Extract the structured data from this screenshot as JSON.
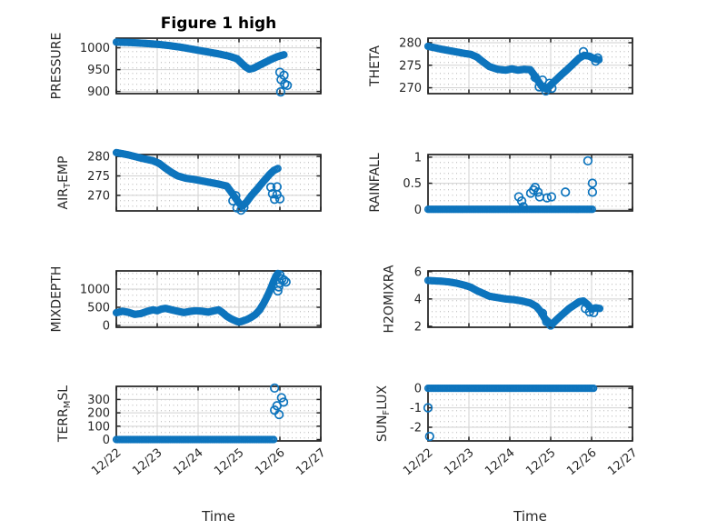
{
  "figure": {
    "title": "Figure 1 high",
    "xlabel": "Time",
    "xticklabels": [
      "12/22",
      "12/23",
      "12/24",
      "12/25",
      "12/26",
      "12/27"
    ],
    "marker_color": "#0d74bd",
    "axis_color": "#1f1f1f",
    "tick_label_color": "#262626",
    "major_grid_color": "#d2d2d2",
    "minor_grid_color": "#c6c6c6",
    "background": "#ffffff"
  },
  "chart_data": [
    {
      "id": "pressure",
      "type": "scatter",
      "grid_row": 0,
      "grid_col": 0,
      "ylabel_parts": [
        {
          "text": "PRESSURE",
          "sub": false
        }
      ],
      "yticks": [
        {
          "v": 900,
          "label": "900"
        },
        {
          "v": 950,
          "label": "950"
        },
        {
          "v": 1000,
          "label": "1000"
        }
      ],
      "ylim": [
        895,
        1022
      ],
      "x_range": [
        0,
        5
      ],
      "trend": [
        [
          0,
          1013
        ],
        [
          0.35,
          1012
        ],
        [
          0.7,
          1010
        ],
        [
          1.0,
          1008
        ],
        [
          1.3,
          1005
        ],
        [
          1.6,
          1001
        ],
        [
          1.9,
          996
        ],
        [
          2.2,
          991
        ],
        [
          2.5,
          986
        ],
        [
          2.75,
          981
        ],
        [
          2.95,
          975
        ],
        [
          3.05,
          966
        ],
        [
          3.15,
          957
        ],
        [
          3.25,
          951
        ],
        [
          3.35,
          953
        ],
        [
          3.5,
          960
        ],
        [
          3.65,
          967
        ],
        [
          3.8,
          974
        ],
        [
          3.95,
          980
        ],
        [
          4.1,
          984
        ]
      ],
      "outliers": [
        [
          4.0,
          944
        ],
        [
          4.1,
          937
        ],
        [
          4.03,
          927
        ],
        [
          4.12,
          917
        ],
        [
          4.18,
          914
        ],
        [
          4.02,
          899
        ]
      ]
    },
    {
      "id": "theta",
      "type": "scatter",
      "grid_row": 0,
      "grid_col": 1,
      "ylabel_parts": [
        {
          "text": "THETA",
          "sub": false
        }
      ],
      "yticks": [
        {
          "v": 270,
          "label": "270"
        },
        {
          "v": 275,
          "label": "275"
        },
        {
          "v": 280,
          "label": "280"
        }
      ],
      "ylim": [
        268.7,
        281.0
      ],
      "x_range": [
        0,
        5
      ],
      "trend": [
        [
          0,
          279.2
        ],
        [
          0.3,
          278.6
        ],
        [
          0.6,
          278.1
        ],
        [
          0.9,
          277.6
        ],
        [
          1.05,
          277.4
        ],
        [
          1.2,
          276.8
        ],
        [
          1.35,
          275.7
        ],
        [
          1.5,
          274.7
        ],
        [
          1.7,
          274.1
        ],
        [
          1.9,
          273.9
        ],
        [
          2.05,
          274.2
        ],
        [
          2.2,
          273.9
        ],
        [
          2.35,
          274.1
        ],
        [
          2.5,
          274.0
        ],
        [
          2.6,
          272.8
        ],
        [
          2.7,
          271.4
        ],
        [
          2.8,
          270.1
        ],
        [
          2.9,
          269.7
        ],
        [
          3.0,
          270.6
        ],
        [
          3.1,
          271.5
        ],
        [
          3.25,
          272.8
        ],
        [
          3.4,
          274.0
        ],
        [
          3.55,
          275.3
        ],
        [
          3.7,
          276.6
        ],
        [
          3.82,
          277.2
        ],
        [
          3.95,
          277.0
        ],
        [
          4.05,
          276.5
        ],
        [
          4.18,
          276.2
        ]
      ],
      "outliers": [
        [
          2.62,
          272.3
        ],
        [
          2.72,
          270.2
        ],
        [
          2.8,
          271.7
        ],
        [
          2.88,
          269.3
        ],
        [
          2.97,
          271.0
        ],
        [
          3.03,
          269.9
        ],
        [
          3.8,
          278.0
        ],
        [
          4.1,
          275.9
        ],
        [
          4.15,
          276.6
        ]
      ]
    },
    {
      "id": "air-temp",
      "type": "scatter",
      "grid_row": 1,
      "grid_col": 0,
      "ylabel_parts": [
        {
          "text": "AIR",
          "sub": false
        },
        {
          "text": "T",
          "sub": true
        },
        {
          "text": "EMP",
          "sub": false
        }
      ],
      "yticks": [
        {
          "v": 270,
          "label": "270"
        },
        {
          "v": 275,
          "label": "275"
        },
        {
          "v": 280,
          "label": "280"
        }
      ],
      "ylim": [
        266.0,
        280.5
      ],
      "x_range": [
        0,
        5
      ],
      "trend": [
        [
          0,
          281.0
        ],
        [
          0.3,
          280.4
        ],
        [
          0.6,
          279.6
        ],
        [
          0.9,
          278.9
        ],
        [
          1.05,
          278.2
        ],
        [
          1.2,
          277.0
        ],
        [
          1.35,
          275.9
        ],
        [
          1.5,
          275.0
        ],
        [
          1.7,
          274.4
        ],
        [
          1.9,
          274.1
        ],
        [
          2.1,
          273.7
        ],
        [
          2.3,
          273.3
        ],
        [
          2.5,
          272.9
        ],
        [
          2.7,
          272.4
        ],
        [
          2.8,
          271.0
        ],
        [
          2.9,
          269.5
        ],
        [
          3.0,
          268.0
        ],
        [
          3.08,
          267.2
        ],
        [
          3.18,
          268.2
        ],
        [
          3.3,
          269.9
        ],
        [
          3.45,
          271.7
        ],
        [
          3.6,
          273.6
        ],
        [
          3.75,
          275.4
        ],
        [
          3.85,
          276.4
        ],
        [
          3.95,
          276.9
        ]
      ],
      "outliers": [
        [
          2.85,
          268.6
        ],
        [
          2.95,
          266.8
        ],
        [
          3.05,
          266.2
        ],
        [
          3.12,
          266.9
        ],
        [
          2.92,
          269.9
        ],
        [
          3.78,
          272.1
        ],
        [
          3.93,
          272.2
        ],
        [
          3.82,
          270.4
        ],
        [
          3.93,
          270.2
        ],
        [
          3.87,
          269.0
        ],
        [
          4.0,
          269.1
        ]
      ]
    },
    {
      "id": "rainfall",
      "type": "scatter",
      "grid_row": 1,
      "grid_col": 1,
      "ylabel_parts": [
        {
          "text": "RAINFALL",
          "sub": false
        }
      ],
      "yticks": [
        {
          "v": 0,
          "label": "0"
        },
        {
          "v": 0.5,
          "label": "0.5"
        },
        {
          "v": 1,
          "label": "1"
        }
      ],
      "ylim": [
        -0.03,
        1.05
      ],
      "x_range": [
        0,
        5
      ],
      "trend": [
        [
          0,
          0
        ],
        [
          4.02,
          0
        ]
      ],
      "outliers": [
        [
          2.22,
          0.24
        ],
        [
          2.29,
          0.16
        ],
        [
          2.33,
          0.05
        ],
        [
          2.51,
          0.31
        ],
        [
          2.58,
          0.37
        ],
        [
          2.62,
          0.42
        ],
        [
          2.69,
          0.33
        ],
        [
          2.73,
          0.24
        ],
        [
          2.91,
          0.22
        ],
        [
          3.02,
          0.24
        ],
        [
          3.36,
          0.33
        ],
        [
          3.91,
          0.93
        ],
        [
          4.02,
          0.5
        ],
        [
          4.02,
          0.33
        ]
      ]
    },
    {
      "id": "mixdepth",
      "type": "scatter",
      "grid_row": 2,
      "grid_col": 0,
      "ylabel_parts": [
        {
          "text": "MIXDEPTH",
          "sub": false
        }
      ],
      "yticks": [
        {
          "v": 0,
          "label": "0"
        },
        {
          "v": 500,
          "label": "500"
        },
        {
          "v": 1000,
          "label": "1000"
        }
      ],
      "ylim": [
        -50,
        1500
      ],
      "x_range": [
        0,
        5
      ],
      "trend": [
        [
          0,
          350
        ],
        [
          0.15,
          390
        ],
        [
          0.3,
          360
        ],
        [
          0.45,
          305
        ],
        [
          0.6,
          325
        ],
        [
          0.75,
          385
        ],
        [
          0.9,
          430
        ],
        [
          1.0,
          405
        ],
        [
          1.1,
          450
        ],
        [
          1.2,
          470
        ],
        [
          1.35,
          430
        ],
        [
          1.5,
          390
        ],
        [
          1.65,
          355
        ],
        [
          1.8,
          385
        ],
        [
          1.95,
          405
        ],
        [
          2.1,
          390
        ],
        [
          2.25,
          365
        ],
        [
          2.4,
          405
        ],
        [
          2.5,
          430
        ],
        [
          2.6,
          350
        ],
        [
          2.7,
          255
        ],
        [
          2.8,
          185
        ],
        [
          2.9,
          135
        ],
        [
          3.0,
          90
        ],
        [
          3.1,
          125
        ],
        [
          3.2,
          165
        ],
        [
          3.3,
          225
        ],
        [
          3.4,
          300
        ],
        [
          3.5,
          420
        ],
        [
          3.6,
          600
        ],
        [
          3.7,
          820
        ],
        [
          3.78,
          1020
        ],
        [
          3.85,
          1220
        ],
        [
          3.9,
          1350
        ],
        [
          3.95,
          1430
        ]
      ],
      "outliers": [
        [
          4.0,
          1390
        ],
        [
          4.05,
          1280
        ],
        [
          4.0,
          1170
        ],
        [
          3.97,
          1060
        ],
        [
          3.95,
          950
        ],
        [
          4.1,
          1245
        ],
        [
          4.15,
          1195
        ]
      ]
    },
    {
      "id": "h2omixra",
      "type": "scatter",
      "grid_row": 2,
      "grid_col": 1,
      "ylabel_parts": [
        {
          "text": "H2OMIXRA",
          "sub": false
        }
      ],
      "yticks": [
        {
          "v": 2,
          "label": "2"
        },
        {
          "v": 4,
          "label": "4"
        },
        {
          "v": 6,
          "label": "6"
        }
      ],
      "ylim": [
        1.93,
        6.05
      ],
      "x_range": [
        0,
        5
      ],
      "trend": [
        [
          0,
          5.35
        ],
        [
          0.3,
          5.3
        ],
        [
          0.5,
          5.25
        ],
        [
          0.7,
          5.15
        ],
        [
          0.9,
          5.0
        ],
        [
          1.05,
          4.85
        ],
        [
          1.2,
          4.6
        ],
        [
          1.35,
          4.4
        ],
        [
          1.5,
          4.2
        ],
        [
          1.7,
          4.1
        ],
        [
          1.9,
          4.0
        ],
        [
          2.1,
          3.95
        ],
        [
          2.3,
          3.85
        ],
        [
          2.5,
          3.7
        ],
        [
          2.65,
          3.45
        ],
        [
          2.75,
          3.1
        ],
        [
          2.85,
          2.6
        ],
        [
          2.95,
          2.25
        ],
        [
          3.05,
          2.2
        ],
        [
          3.15,
          2.5
        ],
        [
          3.3,
          2.9
        ],
        [
          3.45,
          3.3
        ],
        [
          3.6,
          3.6
        ],
        [
          3.7,
          3.8
        ],
        [
          3.8,
          3.85
        ],
        [
          3.9,
          3.6
        ],
        [
          4.0,
          3.25
        ],
        [
          4.1,
          3.35
        ],
        [
          4.2,
          3.3
        ]
      ],
      "outliers": [
        [
          2.8,
          2.95
        ],
        [
          2.9,
          2.35
        ],
        [
          3.0,
          2.1
        ],
        [
          3.85,
          3.3
        ],
        [
          3.95,
          3.05
        ],
        [
          4.05,
          3.0
        ]
      ]
    },
    {
      "id": "terr-msl",
      "type": "scatter",
      "grid_row": 3,
      "grid_col": 0,
      "ylabel_parts": [
        {
          "text": "TERR",
          "sub": false
        },
        {
          "text": "M",
          "sub": true
        },
        {
          "text": "SL",
          "sub": false
        }
      ],
      "yticks": [
        {
          "v": 0,
          "label": "0"
        },
        {
          "v": 100,
          "label": "100"
        },
        {
          "v": 200,
          "label": "200"
        },
        {
          "v": 300,
          "label": "300"
        }
      ],
      "ylim": [
        -10,
        398
      ],
      "x_range": [
        0,
        5
      ],
      "trend": [
        [
          0,
          0
        ],
        [
          3.85,
          0
        ]
      ],
      "outliers": [
        [
          3.87,
          385
        ],
        [
          4.04,
          313
        ],
        [
          4.09,
          280
        ],
        [
          3.93,
          253
        ],
        [
          3.87,
          220
        ],
        [
          3.98,
          187
        ]
      ]
    },
    {
      "id": "sun-flux",
      "type": "scatter",
      "grid_row": 3,
      "grid_col": 1,
      "ylabel_parts": [
        {
          "text": "SUN",
          "sub": false
        },
        {
          "text": "F",
          "sub": true
        },
        {
          "text": "LUX",
          "sub": false
        }
      ],
      "yticks": [
        {
          "v": 0,
          "label": "0"
        },
        {
          "v": -1,
          "label": "-1"
        },
        {
          "v": -2,
          "label": "-2"
        }
      ],
      "ylim": [
        -2.7,
        0.1
      ],
      "x_range": [
        0,
        5
      ],
      "trend": [
        [
          0,
          0
        ],
        [
          4.05,
          0
        ]
      ],
      "outliers": [
        [
          0,
          -1.0
        ],
        [
          0.04,
          -2.47
        ]
      ]
    }
  ]
}
